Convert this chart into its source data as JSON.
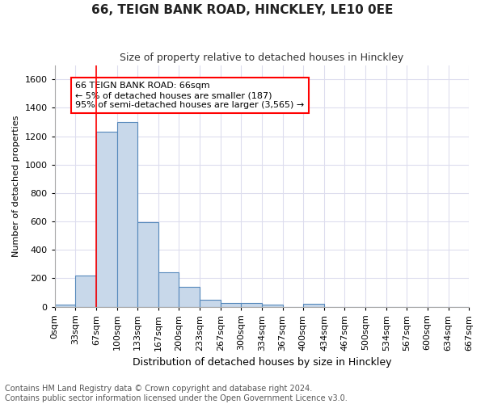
{
  "title": "66, TEIGN BANK ROAD, HINCKLEY, LE10 0EE",
  "subtitle": "Size of property relative to detached houses in Hinckley",
  "xlabel": "Distribution of detached houses by size in Hinckley",
  "ylabel": "Number of detached properties",
  "footnote1": "Contains HM Land Registry data © Crown copyright and database right 2024.",
  "footnote2": "Contains public sector information licensed under the Open Government Licence v3.0.",
  "annotation_line1": "66 TEIGN BANK ROAD: 66sqm",
  "annotation_line2": "← 5% of detached houses are smaller (187)",
  "annotation_line3": "95% of semi-detached houses are larger (3,565) →",
  "bar_color": "#c8d8ea",
  "bar_edge_color": "#5588bb",
  "red_line_x": 67,
  "background_color": "#ffffff",
  "grid_color": "#ddddee",
  "bin_edges": [
    0,
    33,
    67,
    100,
    133,
    167,
    200,
    233,
    267,
    300,
    334,
    367,
    400,
    434,
    467,
    500,
    534,
    567,
    600,
    634,
    667
  ],
  "counts": [
    15,
    220,
    1230,
    1300,
    595,
    240,
    140,
    50,
    28,
    25,
    15,
    0,
    18,
    0,
    0,
    0,
    0,
    0,
    0,
    0
  ],
  "xlim": [
    0,
    667
  ],
  "ylim": [
    0,
    1700
  ],
  "yticks": [
    0,
    200,
    400,
    600,
    800,
    1000,
    1200,
    1400,
    1600
  ],
  "xtick_labels": [
    "0sqm",
    "33sqm",
    "67sqm",
    "100sqm",
    "133sqm",
    "167sqm",
    "200sqm",
    "233sqm",
    "267sqm",
    "300sqm",
    "334sqm",
    "367sqm",
    "400sqm",
    "434sqm",
    "467sqm",
    "500sqm",
    "534sqm",
    "567sqm",
    "600sqm",
    "634sqm",
    "667sqm"
  ],
  "xtick_positions": [
    0,
    33,
    67,
    100,
    133,
    167,
    200,
    233,
    267,
    300,
    334,
    367,
    400,
    434,
    467,
    500,
    534,
    567,
    600,
    634,
    667
  ],
  "title_fontsize": 11,
  "subtitle_fontsize": 9,
  "xlabel_fontsize": 9,
  "ylabel_fontsize": 8,
  "tick_fontsize": 8,
  "annotation_fontsize": 8,
  "footnote_fontsize": 7
}
